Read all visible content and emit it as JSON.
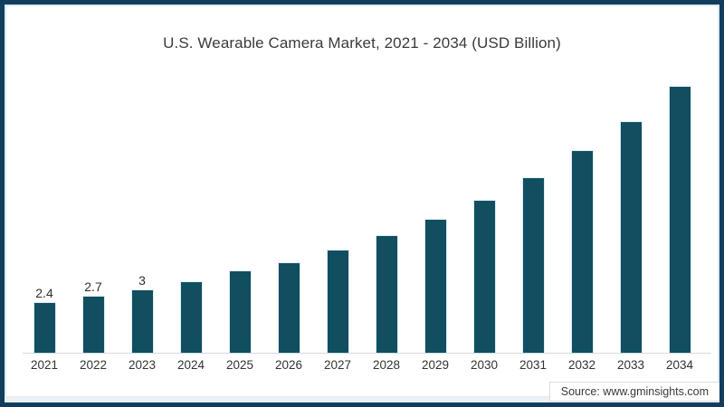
{
  "title": "U.S. Wearable Camera Market, 2021 - 2034 (USD Billion)",
  "source": "Source: www.gminsights.com",
  "frame": {
    "background": "#ffffff",
    "border_color": "#123e5c",
    "inner_edge_color": "#dcebf4"
  },
  "chart_data": {
    "type": "bar",
    "title": "U.S. Wearable Camera Market, 2021 - 2034 (USD Billion)",
    "xlabel": "",
    "ylabel": "",
    "unit": "USD Billion",
    "ylim": [
      0,
      13
    ],
    "grid": false,
    "legend": false,
    "bar_color": "#114e60",
    "axis_line_color": "#d9d9d9",
    "categories": [
      "2021",
      "2022",
      "2023",
      "2024",
      "2025",
      "2026",
      "2027",
      "2028",
      "2029",
      "2030",
      "2031",
      "2032",
      "2033",
      "2034"
    ],
    "values": [
      2.4,
      2.7,
      3,
      3.4,
      3.9,
      4.3,
      4.9,
      5.6,
      6.4,
      7.3,
      8.4,
      9.7,
      11.1,
      12.8
    ],
    "value_labels_shown": [
      "2.4",
      "2.7",
      "3",
      "",
      "",
      "",
      "",
      "",
      "",
      "",
      "",
      "",
      "",
      ""
    ]
  }
}
